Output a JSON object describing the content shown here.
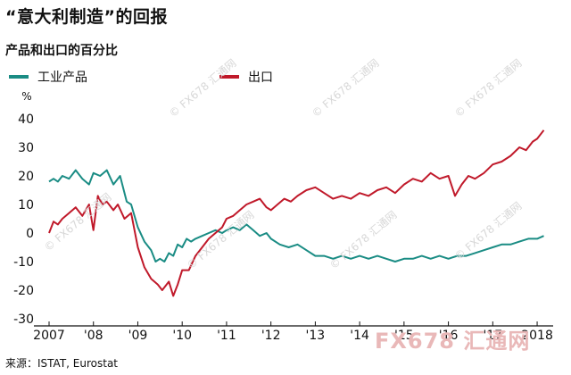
{
  "title": "“意大利制造”的回报",
  "subtitle": "产品和出口的百分比",
  "source": "来源：ISTAT, Eurostat",
  "watermark": "© FX678 汇通网",
  "brand": "FX678 汇通网",
  "chart_data": {
    "type": "line",
    "unit": "%",
    "ylim": [
      -30,
      40
    ],
    "yticks": [
      40,
      30,
      20,
      10,
      0,
      -10,
      -20,
      -30
    ],
    "xlim": [
      2007,
      2018.2
    ],
    "xticks": [
      {
        "label": "2007",
        "x": 2007
      },
      {
        "label": "'08",
        "x": 2008
      },
      {
        "label": "'09",
        "x": 2009
      },
      {
        "label": "'10",
        "x": 2010
      },
      {
        "label": "'11",
        "x": 2011
      },
      {
        "label": "'12",
        "x": 2012
      },
      {
        "label": "'13",
        "x": 2013
      },
      {
        "label": "'14",
        "x": 2014
      },
      {
        "label": "'15",
        "x": 2015
      },
      {
        "label": "'16",
        "x": 2016
      },
      {
        "label": "'17",
        "x": 2017
      },
      {
        "label": "2018",
        "x": 2018
      }
    ],
    "grid": false,
    "legend_placement": "top-left",
    "series": [
      {
        "name": "工业产品",
        "color": "#1a8c84",
        "points": [
          [
            2007.0,
            18
          ],
          [
            2007.1,
            19
          ],
          [
            2007.2,
            18
          ],
          [
            2007.3,
            20
          ],
          [
            2007.45,
            19
          ],
          [
            2007.6,
            22
          ],
          [
            2007.75,
            19
          ],
          [
            2007.9,
            17
          ],
          [
            2008.0,
            21
          ],
          [
            2008.15,
            20
          ],
          [
            2008.3,
            22
          ],
          [
            2008.45,
            17
          ],
          [
            2008.6,
            20
          ],
          [
            2008.75,
            11
          ],
          [
            2008.85,
            10
          ],
          [
            2009.0,
            2
          ],
          [
            2009.15,
            -3
          ],
          [
            2009.3,
            -6
          ],
          [
            2009.4,
            -10
          ],
          [
            2009.5,
            -9
          ],
          [
            2009.6,
            -10
          ],
          [
            2009.7,
            -7
          ],
          [
            2009.8,
            -8
          ],
          [
            2009.9,
            -4
          ],
          [
            2010.0,
            -5
          ],
          [
            2010.1,
            -2
          ],
          [
            2010.2,
            -3
          ],
          [
            2010.3,
            -2
          ],
          [
            2010.45,
            -1
          ],
          [
            2010.6,
            0
          ],
          [
            2010.75,
            1
          ],
          [
            2010.9,
            0
          ],
          [
            2011.0,
            1
          ],
          [
            2011.15,
            2
          ],
          [
            2011.3,
            1
          ],
          [
            2011.45,
            3
          ],
          [
            2011.6,
            1
          ],
          [
            2011.75,
            -1
          ],
          [
            2011.9,
            0
          ],
          [
            2012.0,
            -2
          ],
          [
            2012.2,
            -4
          ],
          [
            2012.4,
            -5
          ],
          [
            2012.6,
            -4
          ],
          [
            2012.8,
            -6
          ],
          [
            2013.0,
            -8
          ],
          [
            2013.2,
            -8
          ],
          [
            2013.4,
            -9
          ],
          [
            2013.6,
            -8
          ],
          [
            2013.8,
            -9
          ],
          [
            2014.0,
            -8
          ],
          [
            2014.2,
            -9
          ],
          [
            2014.4,
            -8
          ],
          [
            2014.6,
            -9
          ],
          [
            2014.8,
            -10
          ],
          [
            2015.0,
            -9
          ],
          [
            2015.2,
            -9
          ],
          [
            2015.4,
            -8
          ],
          [
            2015.6,
            -9
          ],
          [
            2015.8,
            -8
          ],
          [
            2016.0,
            -9
          ],
          [
            2016.2,
            -8
          ],
          [
            2016.4,
            -8
          ],
          [
            2016.6,
            -7
          ],
          [
            2016.8,
            -6
          ],
          [
            2017.0,
            -5
          ],
          [
            2017.2,
            -4
          ],
          [
            2017.4,
            -4
          ],
          [
            2017.6,
            -3
          ],
          [
            2017.8,
            -2
          ],
          [
            2018.0,
            -2
          ],
          [
            2018.15,
            -1
          ]
        ]
      },
      {
        "name": "出口",
        "color": "#c0192a",
        "points": [
          [
            2007.0,
            0
          ],
          [
            2007.1,
            4
          ],
          [
            2007.2,
            3
          ],
          [
            2007.3,
            5
          ],
          [
            2007.45,
            7
          ],
          [
            2007.6,
            9
          ],
          [
            2007.75,
            6
          ],
          [
            2007.9,
            10
          ],
          [
            2008.0,
            1
          ],
          [
            2008.1,
            13
          ],
          [
            2008.2,
            10
          ],
          [
            2008.3,
            11
          ],
          [
            2008.45,
            8
          ],
          [
            2008.55,
            10
          ],
          [
            2008.7,
            5
          ],
          [
            2008.85,
            7
          ],
          [
            2009.0,
            -5
          ],
          [
            2009.15,
            -12
          ],
          [
            2009.3,
            -16
          ],
          [
            2009.45,
            -18
          ],
          [
            2009.55,
            -20
          ],
          [
            2009.7,
            -17
          ],
          [
            2009.8,
            -22
          ],
          [
            2009.9,
            -18
          ],
          [
            2010.0,
            -13
          ],
          [
            2010.15,
            -13
          ],
          [
            2010.3,
            -8
          ],
          [
            2010.45,
            -5
          ],
          [
            2010.6,
            -2
          ],
          [
            2010.75,
            0
          ],
          [
            2010.9,
            2
          ],
          [
            2011.0,
            5
          ],
          [
            2011.15,
            6
          ],
          [
            2011.3,
            8
          ],
          [
            2011.45,
            10
          ],
          [
            2011.6,
            11
          ],
          [
            2011.75,
            12
          ],
          [
            2011.9,
            9
          ],
          [
            2012.0,
            8
          ],
          [
            2012.15,
            10
          ],
          [
            2012.3,
            12
          ],
          [
            2012.45,
            11
          ],
          [
            2012.6,
            13
          ],
          [
            2012.8,
            15
          ],
          [
            2013.0,
            16
          ],
          [
            2013.2,
            14
          ],
          [
            2013.4,
            12
          ],
          [
            2013.6,
            13
          ],
          [
            2013.8,
            12
          ],
          [
            2014.0,
            14
          ],
          [
            2014.2,
            13
          ],
          [
            2014.4,
            15
          ],
          [
            2014.6,
            16
          ],
          [
            2014.8,
            14
          ],
          [
            2015.0,
            17
          ],
          [
            2015.2,
            19
          ],
          [
            2015.4,
            18
          ],
          [
            2015.6,
            21
          ],
          [
            2015.8,
            19
          ],
          [
            2016.0,
            20
          ],
          [
            2016.15,
            13
          ],
          [
            2016.3,
            17
          ],
          [
            2016.45,
            20
          ],
          [
            2016.6,
            19
          ],
          [
            2016.8,
            21
          ],
          [
            2017.0,
            24
          ],
          [
            2017.2,
            25
          ],
          [
            2017.4,
            27
          ],
          [
            2017.6,
            30
          ],
          [
            2017.75,
            29
          ],
          [
            2017.9,
            32
          ],
          [
            2018.0,
            33
          ],
          [
            2018.15,
            36
          ]
        ]
      }
    ]
  }
}
